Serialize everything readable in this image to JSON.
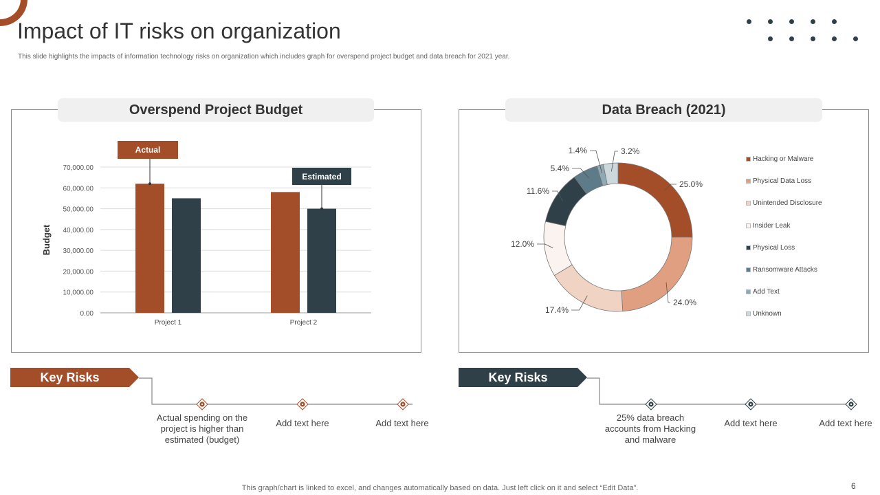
{
  "title": "Impact of IT risks on organization",
  "subtitle": "This slide highlights the impacts of information technology risks on organization which includes graph for overspend project budget and data breach for 2021 year.",
  "colors": {
    "rust": "#a44d29",
    "slate": "#2f4049"
  },
  "left_panel": {
    "heading": "Overspend Project Budget",
    "actual_callout": "Actual",
    "estimated_callout": "Estimated"
  },
  "right_panel": {
    "heading": "Data Breach (2021)"
  },
  "chart_data": [
    {
      "type": "bar",
      "title": "Overspend Project Budget",
      "categories": [
        "Project 1",
        "Project 2"
      ],
      "series": [
        {
          "name": "Actual",
          "color": "#a44d29",
          "values": [
            62000,
            58000
          ]
        },
        {
          "name": "Estimated",
          "color": "#2f4049",
          "values": [
            55000,
            50000
          ]
        }
      ],
      "ylabel": "Budget",
      "xlabel": "",
      "ylim": [
        0,
        70000
      ],
      "yticks": [
        "0.00",
        "10,000.00",
        "20,000.00",
        "30,000.00",
        "40,000.00",
        "50,000.00",
        "60,000.00",
        "70,000.00"
      ],
      "grid": true
    },
    {
      "type": "pie",
      "variant": "donut",
      "title": "Data Breach (2021)",
      "slices": [
        {
          "label": "Hacking or Malware",
          "value": 25.0,
          "display": "25.0%",
          "color": "#a44d29"
        },
        {
          "label": "Physical Data Loss",
          "value": 24.0,
          "display": "24.0%",
          "color": "#df9f80"
        },
        {
          "label": "Unintended Disclosure",
          "value": 17.4,
          "display": "17.4%",
          "color": "#f1d3c4"
        },
        {
          "label": "Insider Leak",
          "value": 12.0,
          "display": "12.0%",
          "color": "#fbf3ef"
        },
        {
          "label": "Physical Loss",
          "value": 11.6,
          "display": "11.6%",
          "color": "#2f4049"
        },
        {
          "label": "Ransomware Attacks",
          "value": 5.4,
          "display": "5.4%",
          "color": "#5d7b89"
        },
        {
          "label": "Add Text",
          "value": 1.4,
          "display": "1.4%",
          "color": "#8faab5"
        },
        {
          "label": "Unknown",
          "value": 3.2,
          "display": "3.2%",
          "color": "#cdd8dd"
        }
      ],
      "legend": "right"
    }
  ],
  "key_risks_left": {
    "label": "Key Risks",
    "items": [
      "Actual spending on the project is higher than estimated (budget)",
      "Add text here",
      "Add text here"
    ]
  },
  "key_risks_right": {
    "label": "Key Risks",
    "items": [
      "25% data breach accounts from Hacking and malware",
      "Add text here",
      "Add text here"
    ]
  },
  "footer": "This graph/chart is linked to excel, and changes automatically based on data. Just left click on it and select “Edit Data”.",
  "page_number": "6"
}
